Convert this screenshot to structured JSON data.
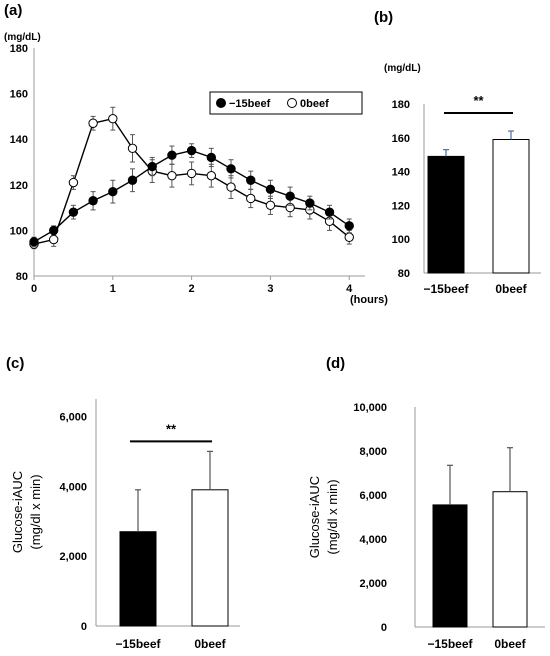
{
  "panels": {
    "a": "(a)",
    "b": "(b)",
    "c": "(c)",
    "d": "(d)"
  },
  "chart_data": [
    {
      "id": "a",
      "type": "line",
      "ylabel": "(mg/dL)",
      "xlabel": "(hours)",
      "xlim": [
        0,
        4.2
      ],
      "ylim": [
        80,
        180
      ],
      "xticks": [
        0,
        1,
        2,
        3,
        4
      ],
      "yticks": [
        80,
        100,
        120,
        140,
        160,
        180
      ],
      "grid": false,
      "legend": "top-right",
      "series": [
        {
          "name": "−15beef",
          "marker": "filled",
          "x": [
            0,
            0.25,
            0.5,
            0.75,
            1.0,
            1.25,
            1.5,
            1.75,
            2.0,
            2.25,
            2.5,
            2.75,
            3.0,
            3.25,
            3.5,
            3.75,
            4.0
          ],
          "y": [
            95,
            100,
            108,
            113,
            117,
            122,
            128,
            133,
            135,
            132,
            127,
            122,
            118,
            115,
            112,
            108,
            102
          ],
          "err": [
            2,
            2,
            3,
            4,
            5,
            5,
            4,
            4,
            3,
            4,
            4,
            4,
            4,
            4,
            3,
            3,
            3
          ]
        },
        {
          "name": "0beef",
          "marker": "open",
          "x": [
            0,
            0.25,
            0.5,
            0.75,
            1.0,
            1.25,
            1.5,
            1.75,
            2.0,
            2.25,
            2.5,
            2.75,
            3.0,
            3.25,
            3.5,
            3.75,
            4.0
          ],
          "y": [
            94,
            96,
            121,
            147,
            149,
            136,
            126,
            124,
            125,
            124,
            119,
            114,
            111,
            110,
            109,
            104,
            97
          ],
          "err": [
            2,
            3,
            3,
            3,
            5,
            6,
            5,
            5,
            5,
            5,
            5,
            4,
            4,
            4,
            4,
            4,
            3
          ]
        }
      ]
    },
    {
      "id": "b",
      "type": "bar",
      "ylabel": "(mg/dL)",
      "categories": [
        "−15beef",
        "0beef"
      ],
      "values": [
        149,
        159
      ],
      "err": [
        4,
        5
      ],
      "fills": [
        "#000000",
        "#ffffff"
      ],
      "ylim": [
        80,
        180
      ],
      "yticks": [
        80,
        100,
        120,
        140,
        160,
        180
      ],
      "sig": "**"
    },
    {
      "id": "c",
      "type": "bar",
      "ylabel": "Glucose-iAUC",
      "ylabel2": "(mg/dl x min)",
      "categories": [
        "−15beef",
        "0beef"
      ],
      "values": [
        2700,
        3900
      ],
      "err": [
        1200,
        1100
      ],
      "fills": [
        "#000000",
        "#ffffff"
      ],
      "ylim": [
        0,
        6500
      ],
      "yticks": [
        0,
        2000,
        4000,
        6000
      ],
      "tick_labels": [
        "0",
        "2,000",
        "4,000",
        "6,000"
      ],
      "sig": "**"
    },
    {
      "id": "d",
      "type": "bar",
      "ylabel": "Glucose-iAUC",
      "ylabel2": "(mg/dl x min)",
      "categories": [
        "−15beef",
        "0beef"
      ],
      "values": [
        5550,
        6150
      ],
      "err": [
        1800,
        2000
      ],
      "fills": [
        "#000000",
        "#ffffff"
      ],
      "ylim": [
        0,
        10000
      ],
      "yticks": [
        0,
        2000,
        4000,
        6000,
        8000,
        10000
      ],
      "tick_labels": [
        "0",
        "2,000",
        "4,000",
        "6,000",
        "8,000",
        "10,000"
      ],
      "sig": ""
    }
  ]
}
